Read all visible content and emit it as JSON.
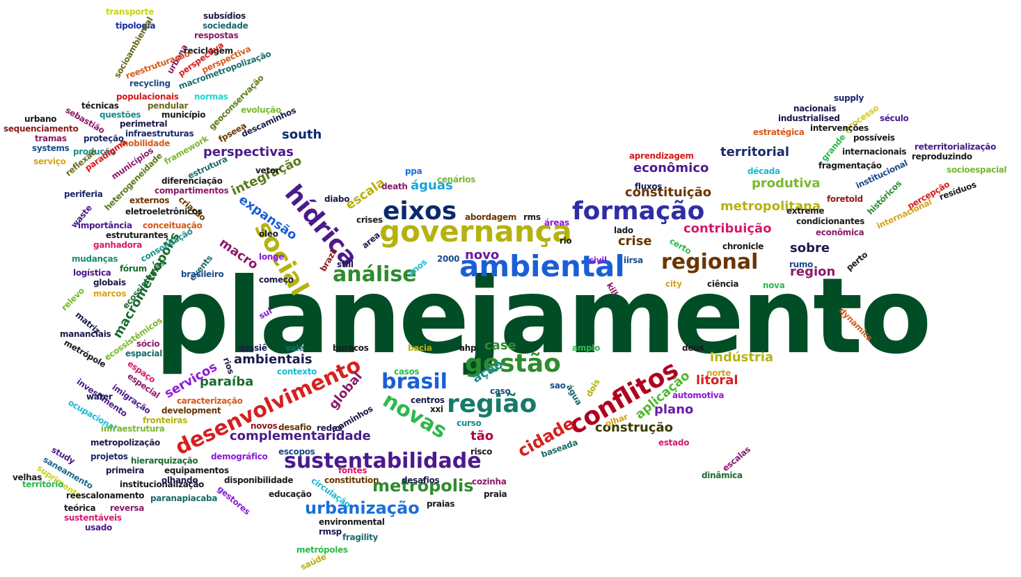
{
  "words": [
    {
      "text": "planejamento",
      "color": "#004d26"
    },
    {
      "text": "governança",
      "color": "#b5b20f"
    },
    {
      "text": "ambiental",
      "color": "#1a5fd6"
    },
    {
      "text": "formação",
      "color": "#2e2ea3"
    },
    {
      "text": "eixos",
      "color": "#0a2a6b"
    },
    {
      "text": "hídrica",
      "color": "#4b1a8c"
    },
    {
      "text": "social",
      "color": "#b5b20f"
    },
    {
      "text": "regional",
      "color": "#6a3500"
    },
    {
      "text": "análise",
      "color": "#2e8b2e"
    },
    {
      "text": "gestão",
      "color": "#2e8b2e"
    },
    {
      "text": "região",
      "color": "#157a6a"
    },
    {
      "text": "brasil",
      "color": "#1a5fd6"
    },
    {
      "text": "conflitos",
      "color": "#b00020"
    },
    {
      "text": "desenvolvimento",
      "color": "#d62020"
    },
    {
      "text": "novas",
      "color": "#2eb84e"
    },
    {
      "text": "sustentabilidade",
      "color": "#4b1a8c"
    },
    {
      "text": "metrópolis",
      "color": "#2e8b2e"
    },
    {
      "text": "urbanização",
      "color": "#1a6fd6"
    },
    {
      "text": "complementaridade",
      "color": "#4b1a8c"
    },
    {
      "text": "construção",
      "color": "#3a3a00"
    },
    {
      "text": "cidade",
      "color": "#d62020"
    },
    {
      "text": "tão",
      "color": "#b00040"
    },
    {
      "text": "plano",
      "color": "#6a1aa3"
    },
    {
      "text": "aplicação",
      "color": "#4fb82e"
    },
    {
      "text": "ação",
      "color": "#1a8c8c"
    },
    {
      "text": "case",
      "color": "#2e8b2e"
    },
    {
      "text": "indústria",
      "color": "#b5b20f"
    },
    {
      "text": "litoral",
      "color": "#d62020"
    },
    {
      "text": "paraíba",
      "color": "#1a6b2e"
    },
    {
      "text": "ambientais",
      "color": "#1a1a4b"
    },
    {
      "text": "serviços",
      "color": "#8c1ad6"
    },
    {
      "text": "global",
      "color": "#8c1a6b"
    },
    {
      "text": "macrometrópolis",
      "color": "#1a6b2e"
    },
    {
      "text": "macro",
      "color": "#8c1a6b"
    },
    {
      "text": "expansão",
      "color": "#1a5fd6"
    },
    {
      "text": "integração",
      "color": "#5a7a1a"
    },
    {
      "text": "perspectivas",
      "color": "#4b1a8c"
    },
    {
      "text": "south",
      "color": "#0a2a6b"
    },
    {
      "text": "escala",
      "color": "#b5b20f"
    },
    {
      "text": "águas",
      "color": "#1aa3d6"
    },
    {
      "text": "novo",
      "color": "#6a1aa3"
    },
    {
      "text": "territorial",
      "color": "#1a2a6b"
    },
    {
      "text": "econômico",
      "color": "#4b1a8c"
    },
    {
      "text": "produtiva",
      "color": "#7ab82e"
    },
    {
      "text": "constituição",
      "color": "#6a3500"
    },
    {
      "text": "metropolitana",
      "color": "#b5b20f"
    },
    {
      "text": "contribuição",
      "color": "#d61a6b"
    },
    {
      "text": "crise",
      "color": "#6a3500"
    },
    {
      "text": "sobre",
      "color": "#1a1a4b"
    },
    {
      "text": "region",
      "color": "#8c1a6b"
    },
    {
      "text": "transporte",
      "color": "#c8d61a"
    },
    {
      "text": "subsídios",
      "color": "#1a1a4b"
    },
    {
      "text": "tipologia",
      "color": "#1a2aa3"
    },
    {
      "text": "sociedade",
      "color": "#1a6b6b"
    },
    {
      "text": "respostas",
      "color": "#8c1a6b"
    },
    {
      "text": "socioambiental",
      "color": "#6a6a1a"
    },
    {
      "text": "urbana",
      "color": "#8c1a6b"
    },
    {
      "text": "reciclagem",
      "color": "#1a1a1a"
    },
    {
      "text": "perspectiva",
      "color": "#d61a1a"
    },
    {
      "text": "reestruturação",
      "color": "#d65a1a"
    },
    {
      "text": "perspectiva",
      "color": "#d65a1a"
    },
    {
      "text": "recycling",
      "color": "#1a4b8c"
    },
    {
      "text": "macrometropolização",
      "color": "#1a6b6b"
    },
    {
      "text": "populacionais",
      "color": "#d61a1a"
    },
    {
      "text": "normas",
      "color": "#1ad6d6"
    },
    {
      "text": "geoconservação",
      "color": "#5a7a1a"
    },
    {
      "text": "técnicas",
      "color": "#1a1a1a"
    },
    {
      "text": "pendular",
      "color": "#6a6a1a"
    },
    {
      "text": "sebastião",
      "color": "#8c1a6b"
    },
    {
      "text": "questões",
      "color": "#1a8c8c"
    },
    {
      "text": "município",
      "color": "#1a1a1a"
    },
    {
      "text": "evolução",
      "color": "#7ab82e"
    },
    {
      "text": "urbano",
      "color": "#1a1a1a"
    },
    {
      "text": "sequenciamento",
      "color": "#8c1a1a"
    },
    {
      "text": "perimetral",
      "color": "#1a1a4b"
    },
    {
      "text": "infraestruturas",
      "color": "#1a2a6b"
    },
    {
      "text": "fpseea",
      "color": "#6a3500"
    },
    {
      "text": "descaminhos",
      "color": "#1a1a4b"
    },
    {
      "text": "tramas",
      "color": "#8c1a6b"
    },
    {
      "text": "proteção",
      "color": "#1a2a6b"
    },
    {
      "text": "mobilidade",
      "color": "#d65a1a"
    },
    {
      "text": "systems",
      "color": "#1a4b8c"
    },
    {
      "text": "produção",
      "color": "#1a8c8c"
    },
    {
      "text": "framework",
      "color": "#7ab82e"
    },
    {
      "text": "serviço",
      "color": "#d6a31a"
    },
    {
      "text": "paradigma",
      "color": "#d61a1a"
    },
    {
      "text": "reflexão",
      "color": "#6a6a1a"
    },
    {
      "text": "municípios",
      "color": "#8c1a6b"
    },
    {
      "text": "estrutura",
      "color": "#1a6b6b"
    },
    {
      "text": "heterogeneidade",
      "color": "#5a7a1a"
    },
    {
      "text": "vetor",
      "color": "#1a1a1a"
    },
    {
      "text": "diferenciação",
      "color": "#1a1a1a"
    },
    {
      "text": "periferia",
      "color": "#1a2a6b"
    },
    {
      "text": "compartimentos",
      "color": "#8c1a6b"
    },
    {
      "text": "externos",
      "color": "#6a3500"
    },
    {
      "text": "criação",
      "color": "#6a3500"
    },
    {
      "text": "waste",
      "color": "#4b1a8c"
    },
    {
      "text": "eletroeletrônicos",
      "color": "#1a1a1a"
    },
    {
      "text": "importância",
      "color": "#4b1a8c"
    },
    {
      "text": "conceituação",
      "color": "#d65a1a"
    },
    {
      "text": "estruturantes",
      "color": "#1a1a1a"
    },
    {
      "text": "consolidação",
      "color": "#1a8c8c"
    },
    {
      "text": "ganhadora",
      "color": "#d61a6b"
    },
    {
      "text": "mudanças",
      "color": "#1a8c6b"
    },
    {
      "text": "fórum",
      "color": "#1a6b2e"
    },
    {
      "text": "logística",
      "color": "#4b1a8c"
    },
    {
      "text": "globais",
      "color": "#1a1a4b"
    },
    {
      "text": "relevo",
      "color": "#7ab82e"
    },
    {
      "text": "marcos",
      "color": "#d6a31a"
    },
    {
      "text": "ecossistemas",
      "color": "#1a6b2e"
    },
    {
      "text": "events",
      "color": "#1a6b6b"
    },
    {
      "text": "brasileiro",
      "color": "#1a4b8c"
    },
    {
      "text": "longe",
      "color": "#8c1ad6"
    },
    {
      "text": "começo",
      "color": "#1a1a4b"
    },
    {
      "text": "matriz",
      "color": "#1a1a4b"
    },
    {
      "text": "ecossistêmicos",
      "color": "#7ab82e"
    },
    {
      "text": "mananciais",
      "color": "#1a1a4b"
    },
    {
      "text": "metrópole",
      "color": "#1a1a1a"
    },
    {
      "text": "sócio",
      "color": "#8c1a6b"
    },
    {
      "text": "espacial",
      "color": "#1a6b6b"
    },
    {
      "text": "espaço",
      "color": "#d61a6b"
    },
    {
      "text": "especial",
      "color": "#8c1a6b"
    },
    {
      "text": "investimento",
      "color": "#4b1a8c"
    },
    {
      "text": "imigração",
      "color": "#4b1a8c"
    },
    {
      "text": "water",
      "color": "#1a1a4b"
    },
    {
      "text": "ocupacional",
      "color": "#1ab8d6"
    },
    {
      "text": "caracterização",
      "color": "#d65a1a"
    },
    {
      "text": "development",
      "color": "#6a3500"
    },
    {
      "text": "fronteiras",
      "color": "#b5b20f"
    },
    {
      "text": "infraestrutura",
      "color": "#7ab82e"
    },
    {
      "text": "metropolização",
      "color": "#1a1a4b"
    },
    {
      "text": "study",
      "color": "#4b1a8c"
    },
    {
      "text": "saneamento",
      "color": "#1a6b8c"
    },
    {
      "text": "projetos",
      "color": "#1a2a6b"
    },
    {
      "text": "hierarquização",
      "color": "#1a6b2e"
    },
    {
      "text": "demográfico",
      "color": "#8c1ad6"
    },
    {
      "text": "suprimento",
      "color": "#c8d61a"
    },
    {
      "text": "primeira",
      "color": "#1a1a4b"
    },
    {
      "text": "equipamentos",
      "color": "#1a1a1a"
    },
    {
      "text": "velhas",
      "color": "#1a1a1a"
    },
    {
      "text": "território",
      "color": "#2eb84e"
    },
    {
      "text": "institucionalização",
      "color": "#1a1a1a"
    },
    {
      "text": "olhando",
      "color": "#1a1a4b"
    },
    {
      "text": "reescalonamento",
      "color": "#1a1a1a"
    },
    {
      "text": "paranapiacaba",
      "color": "#1a6b6b"
    },
    {
      "text": "teórica",
      "color": "#1a1a1a"
    },
    {
      "text": "reversa",
      "color": "#8c1a6b"
    },
    {
      "text": "sustentáveis",
      "color": "#d61a6b"
    },
    {
      "text": "usado",
      "color": "#4b1a8c"
    },
    {
      "text": "gestores",
      "color": "#8c1ad6"
    },
    {
      "text": "educação",
      "color": "#1a1a1a"
    },
    {
      "text": "disponibilidade",
      "color": "#1a1a1a"
    },
    {
      "text": "circulação",
      "color": "#1ab8d6"
    },
    {
      "text": "constitution",
      "color": "#6a3500"
    },
    {
      "text": "desafios",
      "color": "#1a1a4b"
    },
    {
      "text": "praias",
      "color": "#1a1a1a"
    },
    {
      "text": "fontes",
      "color": "#d61a6b"
    },
    {
      "text": "environmental",
      "color": "#1a1a1a"
    },
    {
      "text": "rmsp",
      "color": "#1a1a4b"
    },
    {
      "text": "fragility",
      "color": "#1a6b6b"
    },
    {
      "text": "metrópoles",
      "color": "#2eb84e"
    },
    {
      "text": "saúde",
      "color": "#b5b20f"
    },
    {
      "text": "escopos",
      "color": "#1a4b8c"
    },
    {
      "text": "risco",
      "color": "#1a1a1a"
    },
    {
      "text": "cozinha",
      "color": "#8c1a6b"
    },
    {
      "text": "praia",
      "color": "#1a1a1a"
    },
    {
      "text": "redes",
      "color": "#1a1a4b"
    },
    {
      "text": "desafio",
      "color": "#6a3500"
    },
    {
      "text": "novos",
      "color": "#8c1a1a"
    },
    {
      "text": "caminhos",
      "color": "#1a1a4b"
    },
    {
      "text": "xxi",
      "color": "#1a1a1a"
    },
    {
      "text": "centros",
      "color": "#1a1a4b"
    },
    {
      "text": "curso",
      "color": "#1a8c8c"
    },
    {
      "text": "caso",
      "color": "#1a4b8c"
    },
    {
      "text": "baseada",
      "color": "#1a6b6b"
    },
    {
      "text": "olhar",
      "color": "#d6a31a"
    },
    {
      "text": "estado",
      "color": "#d61a6b"
    },
    {
      "text": "escalas",
      "color": "#8c1a6b"
    },
    {
      "text": "dinâmica",
      "color": "#1a6b2e"
    },
    {
      "text": "automotiva",
      "color": "#8c1ad6"
    },
    {
      "text": "norte",
      "color": "#d6a31a"
    },
    {
      "text": "contexto",
      "color": "#1ab8d6"
    },
    {
      "text": "casos",
      "color": "#2eb84e"
    },
    {
      "text": "dossiê",
      "color": "#1a1a4b"
    },
    {
      "text": "rios",
      "color": "#1a1a4b"
    },
    {
      "text": "vale",
      "color": "#1a6b6b"
    },
    {
      "text": "buracos",
      "color": "#1a1a1a"
    },
    {
      "text": "bacia",
      "color": "#b5b20f"
    },
    {
      "text": "ahp",
      "color": "#1a1a1a"
    },
    {
      "text": "amplo",
      "color": "#2eb84e"
    },
    {
      "text": "sao",
      "color": "#1a4b8c"
    },
    {
      "text": "água",
      "color": "#1a6b6b"
    },
    {
      "text": "dois",
      "color": "#b5b20f"
    },
    {
      "text": "deus",
      "color": "#1a1a1a"
    },
    {
      "text": "sul",
      "color": "#8c1ad6"
    },
    {
      "text": "kill",
      "color": "#8c1a6b"
    },
    {
      "text": "city",
      "color": "#d6a31a"
    },
    {
      "text": "ciência",
      "color": "#1a1a1a"
    },
    {
      "text": "nova",
      "color": "#2eb84e"
    },
    {
      "text": "dynamics",
      "color": "#d65a1a"
    },
    {
      "text": "rumo",
      "color": "#1a4b8c"
    },
    {
      "text": "perto",
      "color": "#1a1a1a"
    },
    {
      "text": "chronicle",
      "color": "#1a1a1a"
    },
    {
      "text": "iirsa",
      "color": "#1a4b8c"
    },
    {
      "text": "civil",
      "color": "#8c1ad6"
    },
    {
      "text": "rio",
      "color": "#1a1a1a"
    },
    {
      "text": "áreas",
      "color": "#8c1ad6"
    },
    {
      "text": "rms",
      "color": "#1a1a1a"
    },
    {
      "text": "abordagem",
      "color": "#6a3500"
    },
    {
      "text": "2000",
      "color": "#1a4b8c"
    },
    {
      "text": "anos",
      "color": "#1ab8d6"
    },
    {
      "text": "still",
      "color": "#1a1a4b"
    },
    {
      "text": "area",
      "color": "#1a1a4b"
    },
    {
      "text": "brazil",
      "color": "#8c1a1a"
    },
    {
      "text": "crises",
      "color": "#1a1a1a"
    },
    {
      "text": "diabo",
      "color": "#1a1a4b"
    },
    {
      "text": "death",
      "color": "#8c1a6b"
    },
    {
      "text": "cenários",
      "color": "#7ab82e"
    },
    {
      "text": "ppa",
      "color": "#1a6fd6"
    },
    {
      "text": "óleo",
      "color": "#1a1a1a"
    },
    {
      "text": "lado",
      "color": "#1a1a1a"
    },
    {
      "text": "certo",
      "color": "#2eb84e"
    },
    {
      "text": "fluxos",
      "color": "#1a1a4b"
    },
    {
      "text": "aprendizagem",
      "color": "#d61a1a"
    },
    {
      "text": "década",
      "color": "#1ab8d6"
    },
    {
      "text": "fragmentação",
      "color": "#1a1a1a"
    },
    {
      "text": "condicionantes",
      "color": "#1a1a1a"
    },
    {
      "text": "extreme",
      "color": "#1a1a1a"
    },
    {
      "text": "foretold",
      "color": "#8c1a1a"
    },
    {
      "text": "econômica",
      "color": "#8c1a6b"
    },
    {
      "text": "supply",
      "color": "#1a2a6b"
    },
    {
      "text": "nacionais",
      "color": "#1a1a4b"
    },
    {
      "text": "industrialised",
      "color": "#1a1a4b"
    },
    {
      "text": "processo",
      "color": "#d6c81a"
    },
    {
      "text": "século",
      "color": "#4b1a8c"
    },
    {
      "text": "estratégica",
      "color": "#d65a1a"
    },
    {
      "text": "intervenções",
      "color": "#1a1a1a"
    },
    {
      "text": "possíveis",
      "color": "#1a1a1a"
    },
    {
      "text": "grande",
      "color": "#2eb84e"
    },
    {
      "text": "internacionais",
      "color": "#1a1a1a"
    },
    {
      "text": "reterritorialização",
      "color": "#4b1a8c"
    },
    {
      "text": "reproduzindo",
      "color": "#1a1a1a"
    },
    {
      "text": "institucional",
      "color": "#1a4b8c"
    },
    {
      "text": "socioespacial",
      "color": "#7ab82e"
    },
    {
      "text": "percepção",
      "color": "#d61a1a"
    },
    {
      "text": "resíduos",
      "color": "#1a1a1a"
    },
    {
      "text": "históricos",
      "color": "#2e8b2e"
    },
    {
      "text": "internacional",
      "color": "#d6a31a"
    }
  ]
}
